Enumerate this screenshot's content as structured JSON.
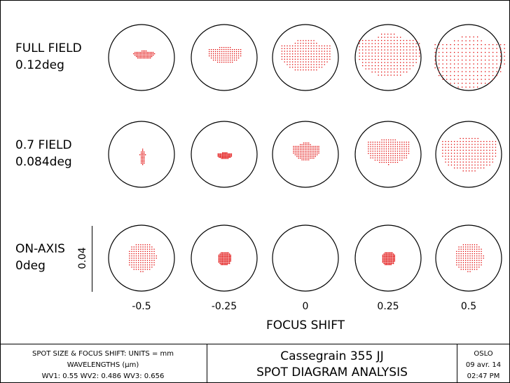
{
  "rows": [
    {
      "label": "FULL FIELD",
      "sublabel": "0.12deg"
    },
    {
      "label": "0.7 FIELD",
      "sublabel": "0.084deg"
    },
    {
      "label": "ON-AXIS",
      "sublabel": "0deg"
    }
  ],
  "scale_bar": "0.04",
  "focus_shifts": [
    -0.5,
    -0.25,
    0,
    0.25,
    0.5
  ],
  "x_axis_title": "FOCUS SHIFT",
  "footer": {
    "left": [
      "SPOT SIZE & FOCUS SHIFT: UNITS = mm",
      "WAVELENGTHS (µm)",
      "WV1: 0.55 WV2: 0.486 WV3: 0.656"
    ],
    "center": [
      "Cassegrain 355 JJ",
      "SPOT DIAGRAM ANALYSIS"
    ],
    "right": [
      "OSLO",
      "09 avr. 14",
      "02:47 PM"
    ]
  }
}
